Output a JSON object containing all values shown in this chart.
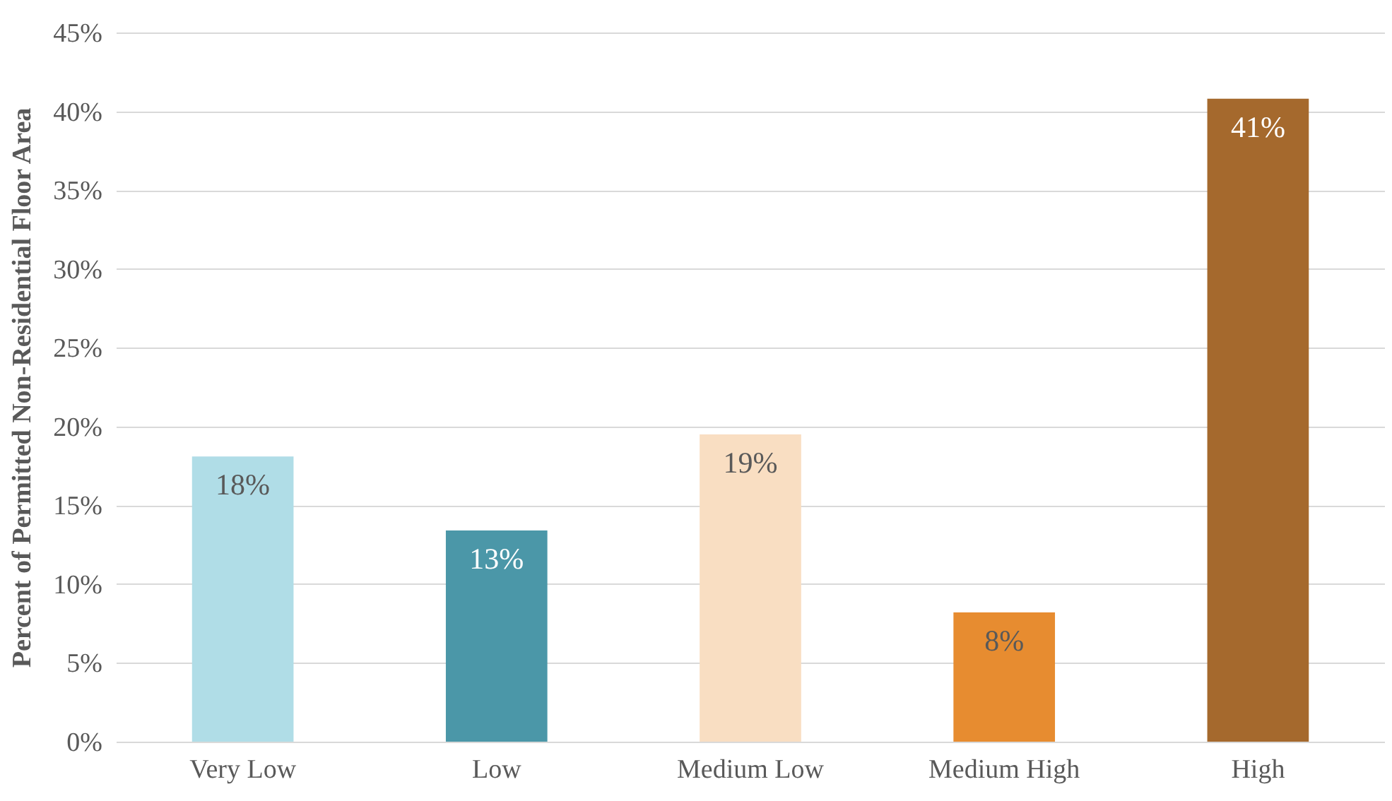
{
  "chart_data": {
    "type": "bar",
    "ylabel": "Percent of Permitted Non-Residential Floor Area",
    "categories": [
      "Very Low",
      "Low",
      "Medium Low",
      "Medium High",
      "High"
    ],
    "values": [
      18.1,
      13.4,
      19.5,
      8.2,
      40.8
    ],
    "value_labels": [
      "18%",
      "13%",
      "19%",
      "8%",
      "41%"
    ],
    "colors": [
      "#b0dde7",
      "#4b97a8",
      "#f9dec2",
      "#e78c30",
      "#a5692d"
    ],
    "ylim": [
      0,
      45
    ],
    "yticks": [
      {
        "value": 0,
        "label": "0%"
      },
      {
        "value": 5,
        "label": "5%"
      },
      {
        "value": 10,
        "label": "10%"
      },
      {
        "value": 15,
        "label": "15%"
      },
      {
        "value": 20,
        "label": "20%"
      },
      {
        "value": 25,
        "label": "25%"
      },
      {
        "value": 30,
        "label": "30%"
      },
      {
        "value": 35,
        "label": "35%"
      },
      {
        "value": 40,
        "label": "40%"
      },
      {
        "value": 45,
        "label": "45%"
      }
    ],
    "grid": "y"
  }
}
